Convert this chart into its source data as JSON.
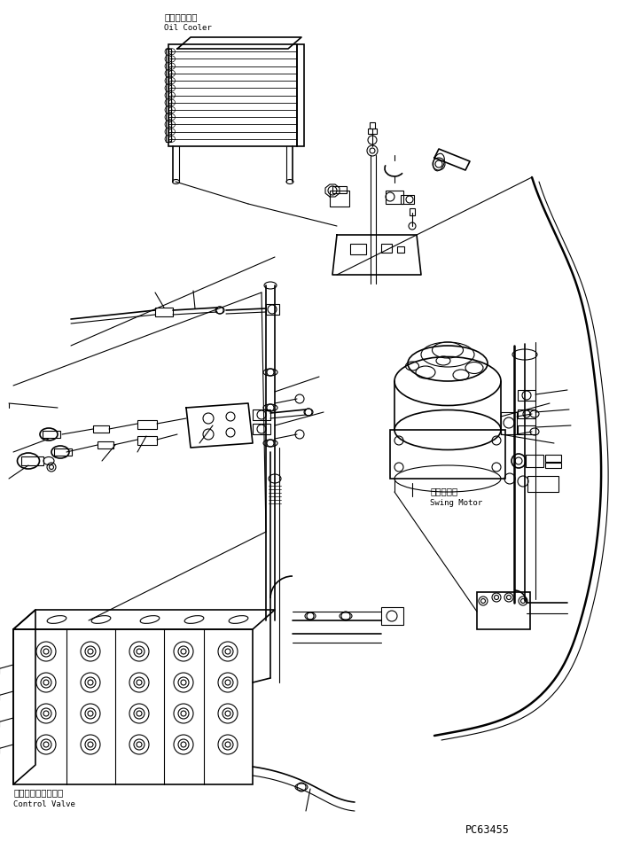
{
  "bg_color": "#ffffff",
  "line_color": "#000000",
  "fig_width": 6.96,
  "fig_height": 9.59,
  "dpi": 100,
  "label_oil_cooler_jp": "オイルクーラ",
  "label_oil_cooler_en": "Oil Cooler",
  "label_swing_motor_jp": "旋回モータ",
  "label_swing_motor_en": "Swing Motor",
  "label_control_valve_jp": "コントロールバルブ",
  "label_control_valve_en": "Control Valve",
  "part_number": "PC63455"
}
